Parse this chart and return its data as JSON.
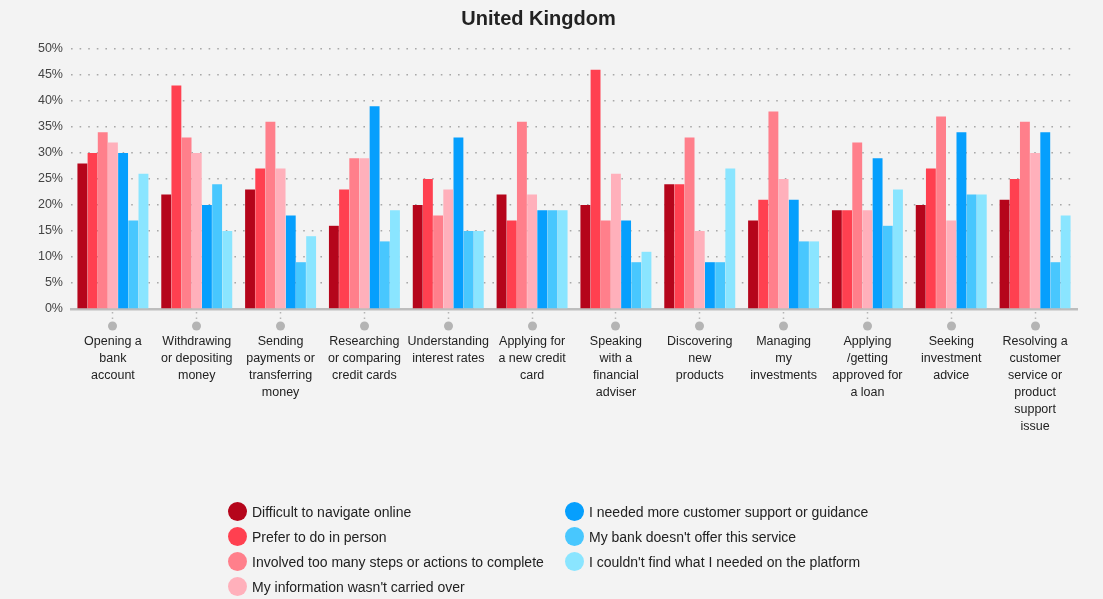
{
  "chart_data": {
    "type": "bar",
    "title": "United Kingdom",
    "categories": [
      "Opening a bank account",
      "Withdrawing or depositing money",
      "Sending payments or transferring money",
      "Researching or comparing credit cards",
      "Understanding interest rates",
      "Applying for a new credit card",
      "Speaking with a financial adviser",
      "Discovering new products",
      "Managing my investments",
      "Applying /getting approved for a loan",
      "Seeking investment advice",
      "Resolving a customer service or product support issue"
    ],
    "series": [
      {
        "name": "Difficult to navigate online",
        "color": "#b5051b",
        "values": [
          28,
          22,
          23,
          16,
          20,
          22,
          20,
          24,
          17,
          19,
          20,
          21
        ]
      },
      {
        "name": "Prefer to do in person",
        "color": "#ff4050",
        "values": [
          30,
          43,
          27,
          23,
          25,
          17,
          46,
          24,
          21,
          19,
          27,
          25
        ]
      },
      {
        "name": "Involved too many steps or actions to complete",
        "color": "#ff7f8b",
        "values": [
          34,
          33,
          36,
          29,
          18,
          36,
          17,
          33,
          38,
          32,
          37,
          36
        ]
      },
      {
        "name": "My information wasn't carried over",
        "color": "#ffb0bb",
        "values": [
          32,
          30,
          27,
          29,
          23,
          22,
          26,
          15,
          25,
          19,
          17,
          30
        ]
      },
      {
        "name": "I needed more customer support or guidance",
        "color": "#069ffd",
        "values": [
          30,
          20,
          18,
          39,
          33,
          19,
          17,
          9,
          21,
          29,
          34,
          34
        ]
      },
      {
        "name": "My bank doesn't offer this service",
        "color": "#48c7fe",
        "values": [
          17,
          24,
          9,
          13,
          15,
          19,
          9,
          9,
          13,
          16,
          22,
          9
        ]
      },
      {
        "name": "I couldn't find what I needed on the platform",
        "color": "#8ae5ff",
        "values": [
          26,
          15,
          14,
          19,
          15,
          19,
          11,
          27,
          13,
          23,
          22,
          18
        ]
      }
    ],
    "ylim": [
      0,
      50
    ],
    "yticks": [
      {
        "value": 0,
        "label": "0%"
      },
      {
        "value": 5,
        "label": "5%"
      },
      {
        "value": 10,
        "label": "10%"
      },
      {
        "value": 15,
        "label": "15%"
      },
      {
        "value": 20,
        "label": "20%"
      },
      {
        "value": 25,
        "label": "25%"
      },
      {
        "value": 30,
        "label": "30%"
      },
      {
        "value": 35,
        "label": "35%"
      },
      {
        "value": 40,
        "label": "40%"
      },
      {
        "value": 45,
        "label": "45%"
      },
      {
        "value": 50,
        "label": "50%"
      }
    ],
    "grid": "y",
    "legend": "bottom"
  }
}
